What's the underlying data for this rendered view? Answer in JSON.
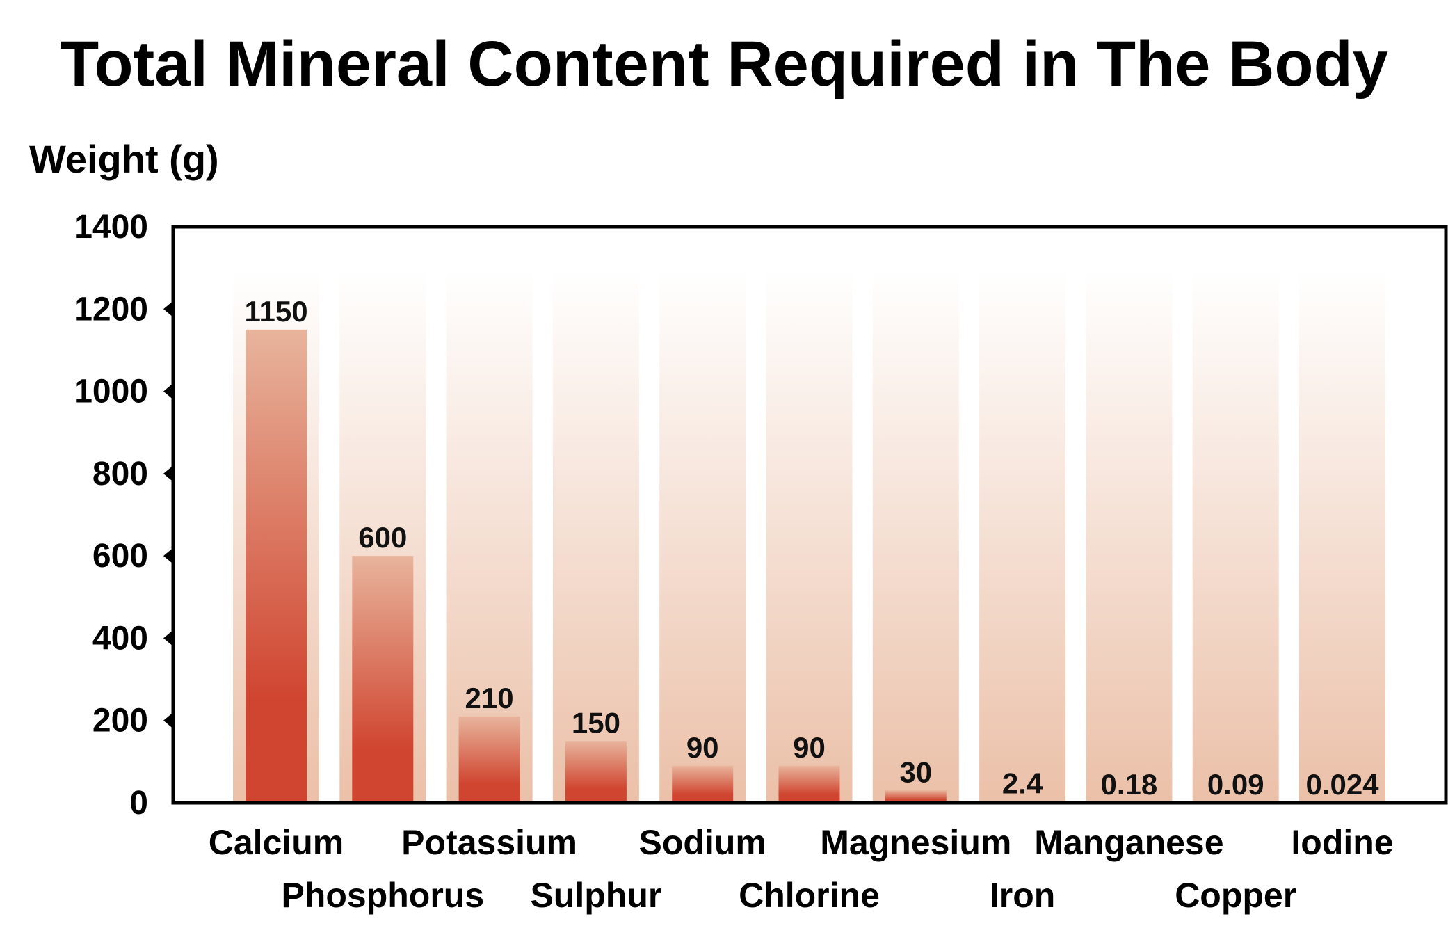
{
  "chart_data": {
    "type": "bar",
    "title": "Total Mineral Content Required in The Body",
    "ylabel": "Weight (g)",
    "xlabel": "",
    "ylim": [
      0,
      1400
    ],
    "yticks": [
      "0",
      "200",
      "400",
      "600",
      "800",
      "1000",
      "1200",
      "1400"
    ],
    "categories": [
      "Calcium",
      "Phosphorus",
      "Potassium",
      "Sulphur",
      "Sodium",
      "Chlorine",
      "Magnesium",
      "Iron",
      "Manganese",
      "Copper",
      "Iodine"
    ],
    "values": [
      1150,
      600,
      210,
      150,
      90,
      90,
      30,
      2.4,
      0.18,
      0.09,
      0.024
    ],
    "value_labels": [
      "1150",
      "600",
      "210",
      "150",
      "90",
      "90",
      "30",
      "2.4",
      "0.18",
      "0.09",
      "0.024"
    ],
    "grid": false,
    "legend": "none",
    "colors": {
      "bar_top": "#e8b49c",
      "bar_bottom": "#d04530",
      "background_column_top": "#ffffff",
      "background_column_bottom": "#ebc0a8",
      "axis": "#000000"
    }
  }
}
